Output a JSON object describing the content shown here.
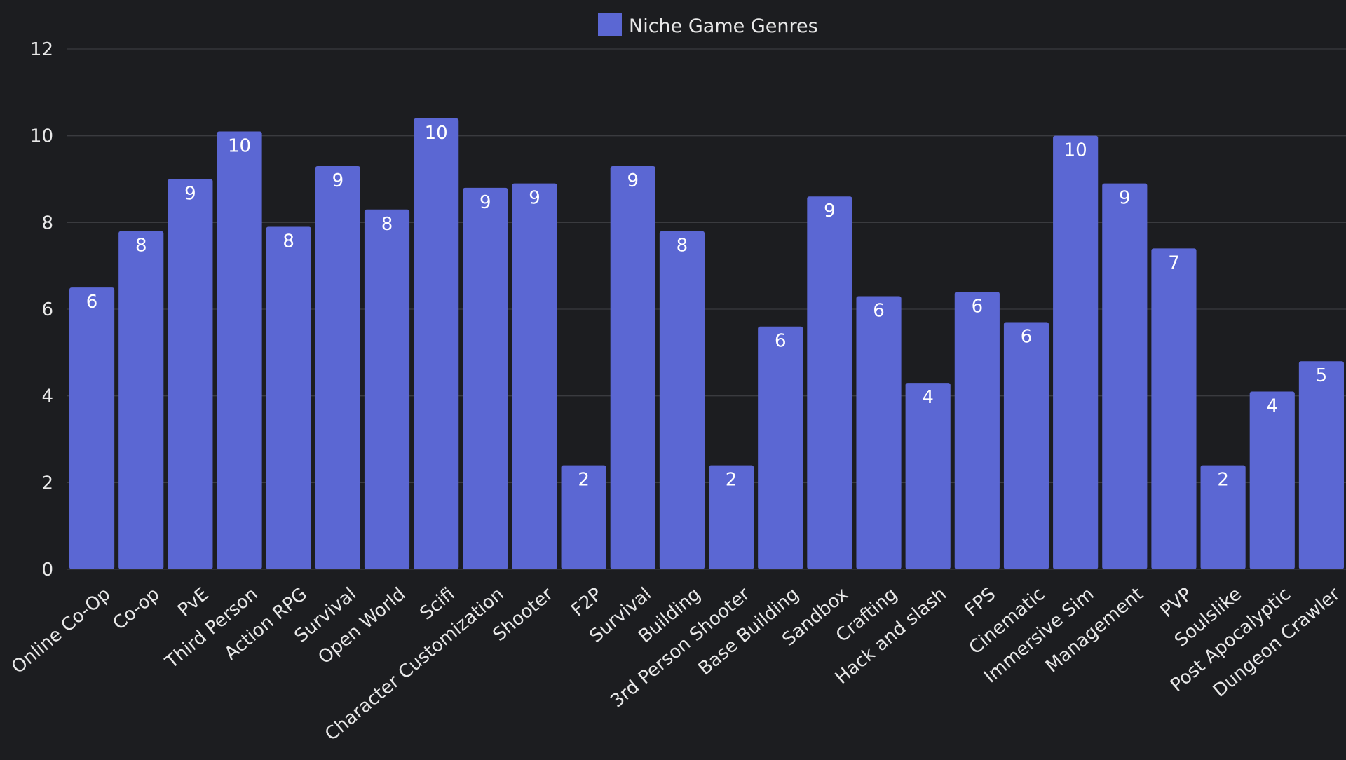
{
  "chart_data": {
    "type": "bar",
    "title": "",
    "xlabel": "",
    "ylabel": "",
    "ylim": [
      0,
      12
    ],
    "yticks": [
      0,
      2,
      4,
      6,
      8,
      10,
      12
    ],
    "grid": true,
    "legend": {
      "position": "top-center",
      "entries": [
        "Niche Game Genres"
      ]
    },
    "series": [
      {
        "name": "Niche Game Genres",
        "color": "#5b67d3",
        "values": [
          6.5,
          7.8,
          9.0,
          10.1,
          7.9,
          9.3,
          8.3,
          10.4,
          8.8,
          8.9,
          2.4,
          9.3,
          7.8,
          2.4,
          5.6,
          8.6,
          6.3,
          4.3,
          6.4,
          5.7,
          10.0,
          8.9,
          7.4,
          2.4,
          4.1,
          4.8
        ],
        "labels": [
          "6",
          "8",
          "9",
          "10",
          "8",
          "9",
          "8",
          "10",
          "9",
          "9",
          "2",
          "9",
          "8",
          "2",
          "6",
          "9",
          "6",
          "4",
          "6",
          "6",
          "10",
          "9",
          "7",
          "2",
          "4",
          "5"
        ]
      }
    ],
    "categories": [
      "Online Co-Op",
      "Co-op",
      "PvE",
      "Third Person",
      "Action RPG",
      "Survival",
      "Open World",
      "Scifi",
      "Character Customization",
      "Shooter",
      "F2P",
      "Survival",
      "Building",
      "3rd Person Shooter",
      "Base Building",
      "Sandbox",
      "Crafting",
      "Hack and slash",
      "FPS",
      "Cinematic",
      "Immersive Sim",
      "Management",
      "PVP",
      "Soulslike",
      "Post Apocalyptic",
      "Dungeon Crawler"
    ]
  }
}
